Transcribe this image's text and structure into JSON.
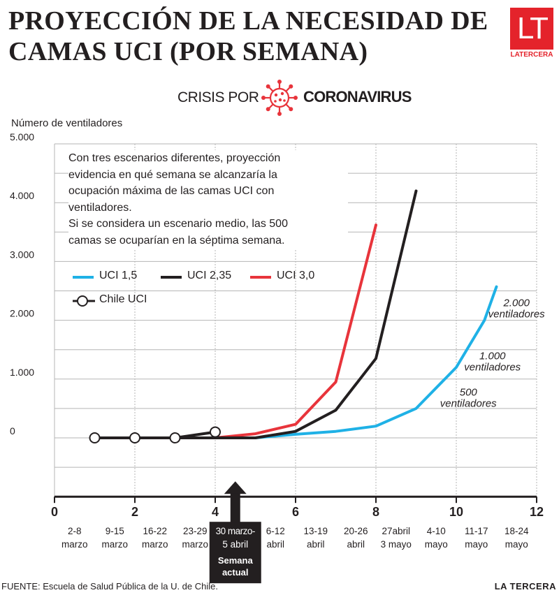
{
  "header": {
    "title_line1": "PROYECCIÓN DE LA NECESIDAD DE",
    "title_line2": "CAMAS UCI (POR SEMANA)",
    "logo_letters": "LT",
    "logo_text": "LATERCERA",
    "crisis_prefix": "CRISIS POR",
    "crisis_word": "CORONAVIRUS"
  },
  "footer": {
    "source": "FUENTE: Escuela de Salud Pública de la U. de Chile.",
    "brand": "LA TERCERA"
  },
  "annotation": {
    "line1": "Con tres escenarios diferentes, proyección",
    "line2": "evidencia en qué semana se alcanzaría la",
    "line3": "ocupación máxima de las camas UCI con",
    "line4": "ventiladores.",
    "line5": "Si se considera un escenario medio, las 500",
    "line6": "camas se ocuparían en la séptima semana."
  },
  "colors": {
    "uci15": "#1fb1e6",
    "uci235": "#231f20",
    "uci30": "#e8343b",
    "grid": "#b5b5b5",
    "current_week": "#231f20"
  },
  "chart_data": {
    "type": "line",
    "ylabel": "Número de ventiladores",
    "xlim": [
      0,
      12
    ],
    "ylim": [
      -1000,
      5000
    ],
    "x_ticks": [
      0,
      2,
      4,
      6,
      8,
      10,
      12
    ],
    "y_ticks": [
      {
        "value": 5000,
        "label": "5.000"
      },
      {
        "value": 4000,
        "label": "4.000"
      },
      {
        "value": 3000,
        "label": "3.000"
      },
      {
        "value": 2000,
        "label": "2.000"
      },
      {
        "value": 1000,
        "label": "1.000"
      },
      {
        "value": 0,
        "label": "0"
      }
    ],
    "week_labels": [
      {
        "x": 0.5,
        "line1": "2-8",
        "line2": "marzo"
      },
      {
        "x": 1.5,
        "line1": "9-15",
        "line2": "marzo"
      },
      {
        "x": 2.5,
        "line1": "16-22",
        "line2": "marzo"
      },
      {
        "x": 3.5,
        "line1": "23-29",
        "line2": "marzo"
      },
      {
        "x": 4.5,
        "line1": "30 marzo-",
        "line2": "5 abril",
        "current": true
      },
      {
        "x": 5.5,
        "line1": "6-12",
        "line2": "abril"
      },
      {
        "x": 6.5,
        "line1": "13-19",
        "line2": "abril"
      },
      {
        "x": 7.5,
        "line1": "20-26",
        "line2": "abril"
      },
      {
        "x": 8.5,
        "line1": "27abril",
        "line2": "3 mayo"
      },
      {
        "x": 9.5,
        "line1": "4-10",
        "line2": "mayo"
      },
      {
        "x": 10.5,
        "line1": "11-17",
        "line2": "mayo"
      },
      {
        "x": 11.5,
        "line1": "18-24",
        "line2": "mayo"
      }
    ],
    "current_week_label_1": "Semana",
    "current_week_label_2": "actual",
    "series": [
      {
        "name": "UCI 1,5",
        "color": "#1fb1e6",
        "x": [
          1,
          2,
          3,
          4,
          5,
          6,
          7,
          8,
          9,
          10,
          10.7,
          11
        ],
        "y": [
          0,
          0,
          0,
          0,
          0,
          60,
          110,
          200,
          500,
          1200,
          2000,
          2570
        ]
      },
      {
        "name": "UCI 2,35",
        "color": "#231f20",
        "x": [
          1,
          2,
          3,
          4,
          5,
          6,
          7,
          8,
          9
        ],
        "y": [
          0,
          0,
          0,
          0,
          0,
          110,
          470,
          1350,
          4200
        ]
      },
      {
        "name": "UCI 3,0",
        "color": "#e8343b",
        "x": [
          1,
          2,
          3,
          4,
          5,
          6,
          7,
          8
        ],
        "y": [
          0,
          0,
          0,
          0,
          70,
          230,
          950,
          3620
        ]
      },
      {
        "name": "Chile UCI",
        "color": "#231f20",
        "marker": "circle",
        "x": [
          1,
          2,
          3,
          4
        ],
        "y": [
          0,
          0,
          0,
          100
        ]
      }
    ],
    "annotations": [
      {
        "text1": "500",
        "text2": "ventiladores",
        "x": 10.3,
        "y": 480
      },
      {
        "text1": "1.000",
        "text2": "ventiladores",
        "x": 10.9,
        "y": 1100
      },
      {
        "text1": "2.000",
        "text2": "ventiladores",
        "x": 11.5,
        "y": 2000
      }
    ]
  }
}
